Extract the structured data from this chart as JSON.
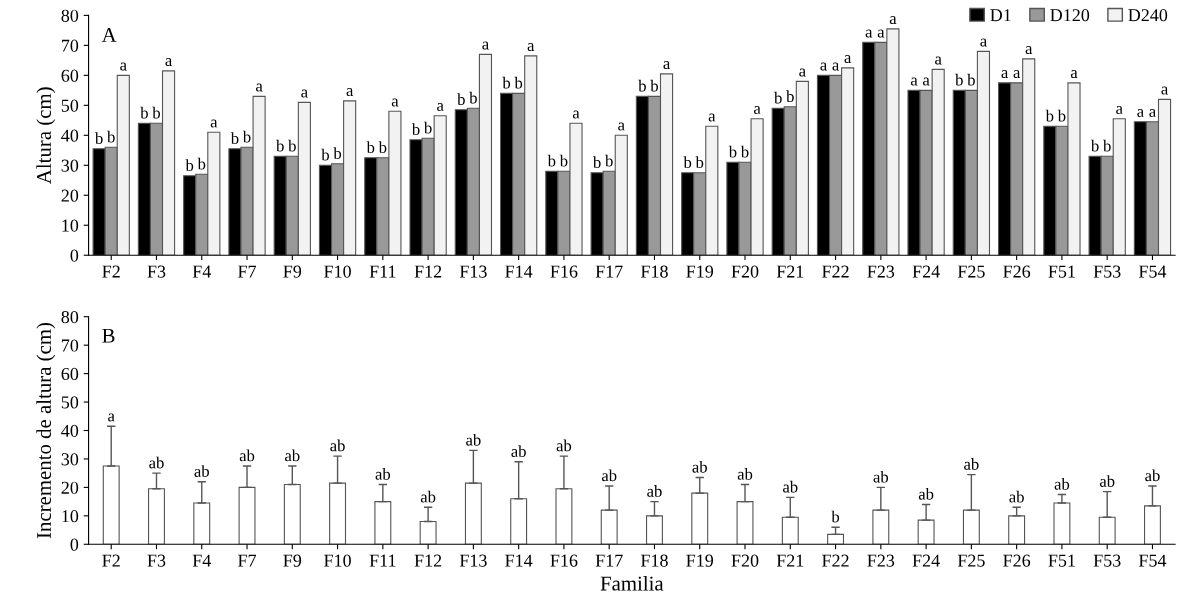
{
  "chart_data": [
    {
      "type": "bar",
      "ylabel": "Altura (cm)",
      "annotations": [
        "A"
      ],
      "categories": [
        "F2",
        "F3",
        "F4",
        "F7",
        "F9",
        "F10",
        "F11",
        "F12",
        "F13",
        "F14",
        "F16",
        "F17",
        "F18",
        "F19",
        "F20",
        "F21",
        "F22",
        "F23",
        "F24",
        "F25",
        "F26",
        "F51",
        "F53",
        "F54"
      ],
      "ylim": [
        0,
        80
      ],
      "yticks": [
        0,
        10,
        20,
        30,
        40,
        50,
        60,
        70,
        80
      ],
      "legend": "top right",
      "series": [
        {
          "name": "D1",
          "color": "#000000",
          "values": [
            35.5,
            44,
            26.5,
            35.5,
            33,
            30,
            32.5,
            38.5,
            48.5,
            54,
            28,
            27.5,
            53,
            27.5,
            31,
            49,
            60,
            71,
            55,
            55,
            57.5,
            43,
            33,
            44.5
          ],
          "value_labels": [
            "b",
            "b",
            "b",
            "b",
            "b",
            "b",
            "b",
            "b",
            "b",
            "b",
            "b",
            "b",
            "b",
            "b",
            "b",
            "b",
            "a",
            "a",
            "a",
            "b",
            "a",
            "b",
            "b",
            "a"
          ]
        },
        {
          "name": "D120",
          "color": "#999999",
          "values": [
            36,
            44,
            27,
            36,
            33,
            30.5,
            32.5,
            39,
            49,
            54,
            28,
            28,
            53,
            27.5,
            31,
            49.5,
            60,
            71,
            55,
            55,
            57.5,
            43,
            33,
            44.5
          ],
          "value_labels": [
            "b",
            "b",
            "b",
            "b",
            "b",
            "b",
            "b",
            "b",
            "b",
            "b",
            "b",
            "b",
            "b",
            "b",
            "b",
            "b",
            "a",
            "a",
            "a",
            "b",
            "a",
            "b",
            "b",
            "a"
          ]
        },
        {
          "name": "D240",
          "color": "#f2f2f2",
          "values": [
            60,
            61.5,
            41,
            53,
            51,
            51.5,
            48,
            46.5,
            67,
            66.5,
            44,
            40,
            60.5,
            43,
            45.5,
            58,
            62.5,
            75.5,
            62,
            68,
            65.5,
            57.5,
            45.5,
            52
          ],
          "value_labels": [
            "a",
            "a",
            "a",
            "a",
            "a",
            "a",
            "a",
            "a",
            "a",
            "a",
            "a",
            "a",
            "a",
            "a",
            "a",
            "a",
            "a",
            "a",
            "a",
            "a",
            "a",
            "a",
            "a",
            "a"
          ]
        }
      ]
    },
    {
      "type": "bar",
      "ylabel": "Incremento de altura (cm)",
      "xlabel": "Familia",
      "annotations": [
        "B"
      ],
      "categories": [
        "F2",
        "F3",
        "F4",
        "F7",
        "F9",
        "F10",
        "F11",
        "F12",
        "F13",
        "F14",
        "F16",
        "F17",
        "F18",
        "F19",
        "F20",
        "F21",
        "F22",
        "F23",
        "F24",
        "F25",
        "F26",
        "F51",
        "F53",
        "F54"
      ],
      "ylim": [
        0,
        80
      ],
      "yticks": [
        0,
        10,
        20,
        30,
        40,
        50,
        60,
        70,
        80
      ],
      "series": [
        {
          "color": "#ffffff",
          "values": [
            27.5,
            19.5,
            14.5,
            20,
            21,
            21.5,
            15,
            8,
            21.5,
            16,
            19.5,
            12,
            10,
            18,
            15,
            9.5,
            3.5,
            12,
            8.5,
            12,
            10,
            14.5,
            9.5,
            13.5
          ],
          "errors": [
            [
              27.5,
              41.5
            ],
            [
              19.5,
              25
            ],
            [
              14.5,
              22
            ],
            [
              20,
              27.5
            ],
            [
              21,
              27.5
            ],
            [
              21.5,
              31
            ],
            [
              15,
              21
            ],
            [
              8,
              13
            ],
            [
              21.5,
              33
            ],
            [
              16,
              29
            ],
            [
              19.5,
              31
            ],
            [
              12,
              20.5
            ],
            [
              10,
              15
            ],
            [
              18,
              23.5
            ],
            [
              15,
              21
            ],
            [
              9.5,
              16.5
            ],
            [
              3.5,
              6
            ],
            [
              12,
              20
            ],
            [
              8.5,
              14
            ],
            [
              12,
              24.5
            ],
            [
              10,
              13
            ],
            [
              14.5,
              17.5
            ],
            [
              9.5,
              18.5
            ],
            [
              13.5,
              20.5
            ]
          ],
          "value_labels": [
            "a",
            "ab",
            "ab",
            "ab",
            "ab",
            "ab",
            "ab",
            "ab",
            "ab",
            "ab",
            "ab",
            "ab",
            "ab",
            "ab",
            "ab",
            "ab",
            "b",
            "ab",
            "ab",
            "ab",
            "ab",
            "ab",
            "ab",
            "ab"
          ]
        }
      ]
    }
  ]
}
